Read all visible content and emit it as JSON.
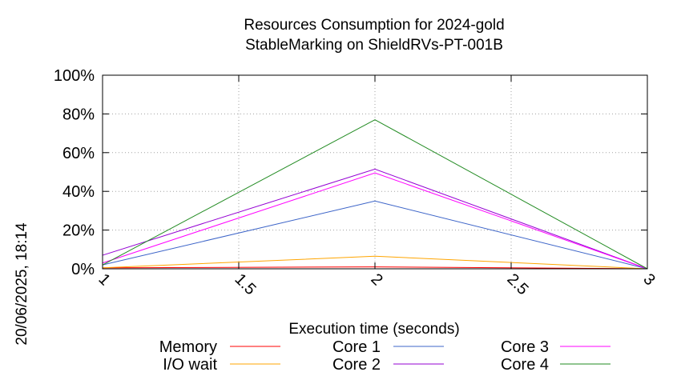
{
  "chart_data": {
    "type": "line",
    "title_lines": [
      "Resources Consumption for 2024-gold",
      "StableMarking on ShieldRVs-PT-001B"
    ],
    "xlabel": "Execution time (seconds)",
    "side_label": "20/06/2025, 18:14",
    "xlim": [
      1,
      3
    ],
    "ylim": [
      0,
      100
    ],
    "x_ticks": [
      1,
      1.5,
      2,
      2.5,
      3
    ],
    "x_tick_labels": [
      "1",
      "1.5",
      "2",
      "2.5",
      "3"
    ],
    "y_ticks": [
      0,
      20,
      40,
      60,
      80,
      100
    ],
    "y_tick_labels": [
      "0%",
      "20%",
      "40%",
      "60%",
      "80%",
      "100%"
    ],
    "grid": true,
    "legend_position": "bottom",
    "x": [
      1,
      2,
      3
    ],
    "series": [
      {
        "name": "Memory",
        "color": "#ff0000",
        "values": [
          0.5,
          1,
          0
        ]
      },
      {
        "name": "I/O wait",
        "color": "#ffa500",
        "values": [
          0.5,
          6.5,
          0
        ]
      },
      {
        "name": "Core 1",
        "color": "#3c64c8",
        "values": [
          2,
          35,
          0
        ]
      },
      {
        "name": "Core 2",
        "color": "#9400d3",
        "values": [
          7,
          51.5,
          0
        ]
      },
      {
        "name": "Core 3",
        "color": "#ff00ff",
        "values": [
          3,
          49.5,
          0
        ]
      },
      {
        "name": "Core 4",
        "color": "#228b22",
        "values": [
          2,
          77,
          0
        ]
      }
    ]
  }
}
